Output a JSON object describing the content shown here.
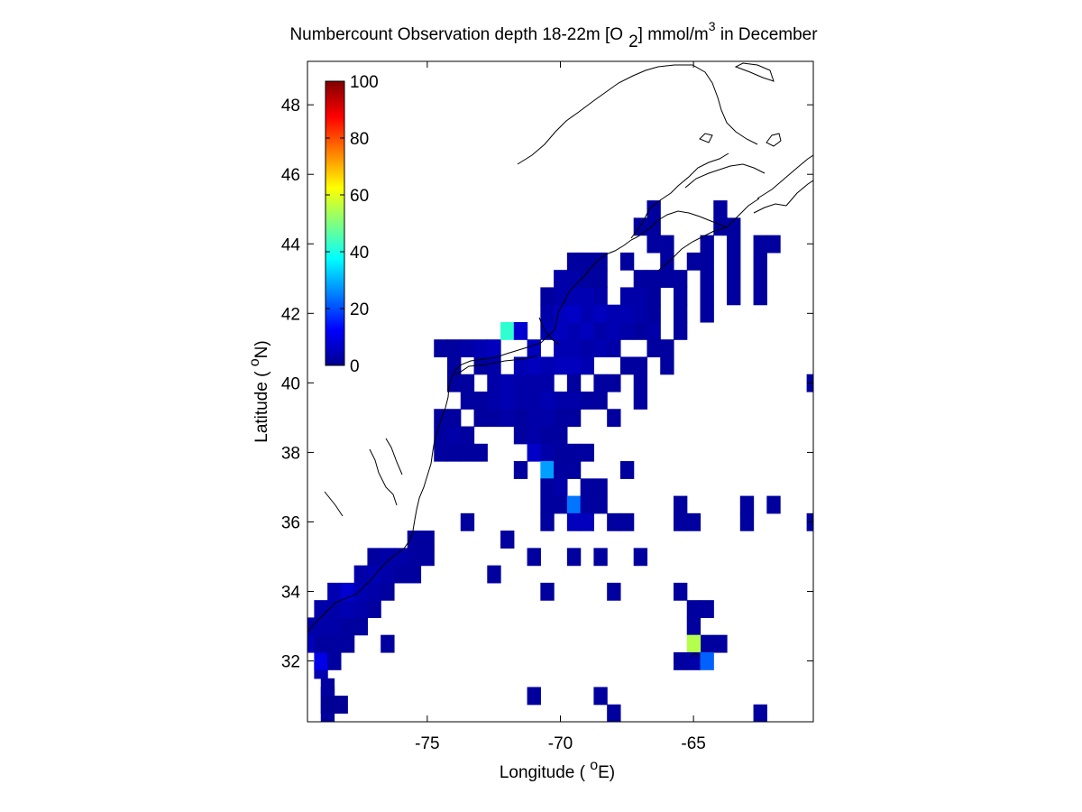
{
  "chart_data": {
    "type": "heatmap",
    "title_main": "Numbercount Observation depth 18-22m [O",
    "title_sub": "2",
    "title_mid": "] mmol/m",
    "title_sup": "3",
    "title_end": " in December",
    "xlabel_pre": "Longitude ( ",
    "xlabel_deg": "o",
    "xlabel_post": "E)",
    "ylabel_pre": "Latitude ( ",
    "ylabel_deg": "o",
    "ylabel_post": "N)",
    "xlim": [
      -79.5,
      -60.5
    ],
    "ylim": [
      30.25,
      49.25
    ],
    "xticks": [
      -75,
      -70,
      -65
    ],
    "xtick_labels": [
      "-75",
      "-70",
      "-65"
    ],
    "yticks": [
      32,
      34,
      36,
      38,
      40,
      42,
      44,
      46,
      48
    ],
    "ytick_labels": [
      "32",
      "34",
      "36",
      "38",
      "40",
      "42",
      "44",
      "46",
      "48"
    ],
    "colorbar": {
      "colormap": "jet",
      "range": [
        0,
        100
      ],
      "ticks": [
        0,
        20,
        40,
        60,
        80,
        100
      ],
      "tick_labels": [
        "0",
        "20",
        "40",
        "60",
        "80",
        "100"
      ],
      "placement": "top-left inside"
    },
    "cell_size_deg": [
      0.5,
      0.5
    ],
    "cells": [
      [
        -78.75,
        30.5,
        3
      ],
      [
        -78.75,
        30.75,
        2
      ],
      [
        -78.25,
        30.75,
        2
      ],
      [
        -78.75,
        31.0,
        2
      ],
      [
        -78.75,
        31.25,
        3
      ],
      [
        -79.0,
        31.75,
        5
      ],
      [
        -79.0,
        32.0,
        10
      ],
      [
        -78.5,
        32.0,
        3
      ],
      [
        -79.5,
        32.5,
        6
      ],
      [
        -79.0,
        32.5,
        3
      ],
      [
        -78.5,
        32.5,
        3
      ],
      [
        -78.0,
        32.5,
        3
      ],
      [
        -79.5,
        33.0,
        4
      ],
      [
        -79.0,
        33.0,
        4
      ],
      [
        -78.5,
        33.0,
        4
      ],
      [
        -78.0,
        33.0,
        3
      ],
      [
        -77.5,
        33.0,
        3
      ],
      [
        -79.0,
        33.5,
        4
      ],
      [
        -78.5,
        33.5,
        4
      ],
      [
        -78.0,
        33.5,
        5
      ],
      [
        -77.5,
        33.5,
        4
      ],
      [
        -77.0,
        33.5,
        3
      ],
      [
        -78.5,
        34.0,
        5
      ],
      [
        -78.0,
        34.0,
        8
      ],
      [
        -77.5,
        34.0,
        5
      ],
      [
        -77.0,
        34.0,
        4
      ],
      [
        -76.5,
        34.0,
        3
      ],
      [
        -77.5,
        34.5,
        4
      ],
      [
        -77.0,
        34.5,
        5
      ],
      [
        -76.5,
        34.5,
        4
      ],
      [
        -76.0,
        34.5,
        3
      ],
      [
        -75.5,
        34.5,
        3
      ],
      [
        -77.0,
        35.0,
        3
      ],
      [
        -76.5,
        35.0,
        4
      ],
      [
        -76.0,
        35.0,
        4
      ],
      [
        -75.5,
        35.0,
        3
      ],
      [
        -75.0,
        35.0,
        3
      ],
      [
        -75.5,
        35.5,
        3
      ],
      [
        -75.0,
        35.5,
        3
      ],
      [
        -74.0,
        38.0,
        3
      ],
      [
        -73.5,
        38.0,
        3
      ],
      [
        -73.0,
        38.0,
        3
      ],
      [
        -74.5,
        38.0,
        3
      ],
      [
        -74.5,
        38.5,
        3
      ],
      [
        -74.0,
        38.5,
        4
      ],
      [
        -73.5,
        38.5,
        3
      ],
      [
        -74.5,
        39.0,
        3
      ],
      [
        -74.0,
        39.0,
        3
      ],
      [
        -73.0,
        39.0,
        3
      ],
      [
        -72.5,
        39.0,
        3
      ],
      [
        -72.0,
        39.0,
        4
      ],
      [
        -73.5,
        39.5,
        3
      ],
      [
        -73.0,
        39.5,
        3
      ],
      [
        -72.5,
        39.5,
        4
      ],
      [
        -72.0,
        39.5,
        5
      ],
      [
        -71.5,
        39.5,
        4
      ],
      [
        -74.0,
        40.0,
        3
      ],
      [
        -73.5,
        40.0,
        3
      ],
      [
        -72.5,
        40.0,
        4
      ],
      [
        -72.0,
        40.0,
        5
      ],
      [
        -71.5,
        40.0,
        4
      ],
      [
        -74.0,
        40.5,
        3
      ],
      [
        -73.0,
        40.5,
        3
      ],
      [
        -72.5,
        40.5,
        4
      ],
      [
        -71.5,
        40.5,
        5
      ],
      [
        -71.0,
        40.5,
        6
      ],
      [
        -74.5,
        41.0,
        3
      ],
      [
        -74.0,
        41.0,
        3
      ],
      [
        -73.5,
        41.0,
        4
      ],
      [
        -73.0,
        41.0,
        5
      ],
      [
        -72.5,
        41.0,
        6
      ],
      [
        -72.0,
        41.5,
        42
      ],
      [
        -71.5,
        41.5,
        8
      ],
      [
        -71.0,
        41.0,
        6
      ],
      [
        -70.5,
        41.5,
        5
      ],
      [
        -70.0,
        41.5,
        6
      ],
      [
        -69.5,
        41.5,
        5
      ],
      [
        -69.0,
        41.5,
        6
      ],
      [
        -68.5,
        41.5,
        4
      ],
      [
        -70.5,
        42.0,
        4
      ],
      [
        -70.0,
        42.0,
        6
      ],
      [
        -69.5,
        42.0,
        7
      ],
      [
        -69.0,
        42.0,
        5
      ],
      [
        -68.5,
        42.0,
        6
      ],
      [
        -70.5,
        42.5,
        3
      ],
      [
        -70.0,
        42.5,
        4
      ],
      [
        -69.5,
        42.5,
        5
      ],
      [
        -69.0,
        42.5,
        5
      ],
      [
        -68.5,
        42.5,
        4
      ],
      [
        -70.0,
        43.0,
        4
      ],
      [
        -69.5,
        43.0,
        4
      ],
      [
        -69.0,
        43.0,
        3
      ],
      [
        -68.5,
        43.0,
        3
      ],
      [
        -69.5,
        43.5,
        3
      ],
      [
        -69.0,
        43.5,
        3
      ],
      [
        -68.5,
        43.5,
        3
      ],
      [
        -70.0,
        40.5,
        6
      ],
      [
        -69.5,
        40.5,
        6
      ],
      [
        -69.0,
        40.5,
        5
      ],
      [
        -70.5,
        40.5,
        5
      ],
      [
        -70.0,
        41.0,
        5
      ],
      [
        -69.5,
        41.0,
        5
      ],
      [
        -69.0,
        41.0,
        4
      ],
      [
        -68.5,
        41.0,
        5
      ],
      [
        -68.0,
        41.0,
        4
      ],
      [
        -68.0,
        41.5,
        5
      ],
      [
        -67.5,
        41.5,
        4
      ],
      [
        -67.0,
        41.5,
        3
      ],
      [
        -68.0,
        42.0,
        5
      ],
      [
        -67.5,
        42.0,
        5
      ],
      [
        -67.0,
        42.0,
        4
      ],
      [
        -66.5,
        42.0,
        3
      ],
      [
        -67.5,
        42.5,
        4
      ],
      [
        -67.0,
        42.5,
        4
      ],
      [
        -66.5,
        42.5,
        3
      ],
      [
        -67.0,
        43.0,
        3
      ],
      [
        -66.5,
        43.0,
        3
      ],
      [
        -66.0,
        43.0,
        3
      ],
      [
        -65.5,
        43.0,
        3
      ],
      [
        -67.5,
        43.5,
        3
      ],
      [
        -66.0,
        43.5,
        3
      ],
      [
        -65.0,
        43.5,
        3
      ],
      [
        -66.5,
        44.0,
        3
      ],
      [
        -66.0,
        44.0,
        3
      ],
      [
        -64.5,
        44.0,
        3
      ],
      [
        -63.5,
        44.0,
        3
      ],
      [
        -62.5,
        44.0,
        3
      ],
      [
        -62.0,
        44.0,
        3
      ],
      [
        -67.0,
        44.5,
        3
      ],
      [
        -66.5,
        44.5,
        3
      ],
      [
        -64.0,
        44.5,
        3
      ],
      [
        -63.5,
        44.5,
        3
      ],
      [
        -66.5,
        45.0,
        3
      ],
      [
        -64.0,
        45.0,
        3
      ],
      [
        -64.5,
        43.0,
        3
      ],
      [
        -64.5,
        42.5,
        3
      ],
      [
        -64.5,
        42.0,
        3
      ],
      [
        -63.5,
        43.0,
        3
      ],
      [
        -63.5,
        42.5,
        3
      ],
      [
        -62.5,
        43.0,
        3
      ],
      [
        -62.5,
        42.5,
        3
      ],
      [
        -62.5,
        43.5,
        3
      ],
      [
        -63.5,
        43.5,
        3
      ],
      [
        -64.5,
        43.5,
        3
      ],
      [
        -65.5,
        42.5,
        3
      ],
      [
        -65.5,
        42.0,
        3
      ],
      [
        -65.5,
        41.5,
        3
      ],
      [
        -66.0,
        41.0,
        3
      ],
      [
        -66.0,
        40.5,
        3
      ],
      [
        -66.5,
        41.5,
        4
      ],
      [
        -66.5,
        41.0,
        3
      ],
      [
        -67.0,
        40.5,
        3
      ],
      [
        -67.5,
        40.5,
        3
      ],
      [
        -68.0,
        40.0,
        3
      ],
      [
        -68.5,
        40.0,
        3
      ],
      [
        -69.5,
        40.0,
        3
      ],
      [
        -70.5,
        40.0,
        4
      ],
      [
        -71.0,
        40.0,
        4
      ],
      [
        -67.0,
        40.0,
        3
      ],
      [
        -67.0,
        39.5,
        3
      ],
      [
        -68.5,
        39.5,
        3
      ],
      [
        -69.0,
        39.5,
        3
      ],
      [
        -69.5,
        39.5,
        4
      ],
      [
        -70.0,
        39.5,
        4
      ],
      [
        -70.5,
        39.5,
        5
      ],
      [
        -71.0,
        39.5,
        4
      ],
      [
        -70.0,
        39.0,
        3
      ],
      [
        -70.5,
        39.0,
        4
      ],
      [
        -71.0,
        39.0,
        4
      ],
      [
        -71.5,
        39.0,
        3
      ],
      [
        -69.5,
        39.0,
        3
      ],
      [
        -68.0,
        39.0,
        3
      ],
      [
        -70.0,
        38.5,
        3
      ],
      [
        -70.5,
        38.5,
        3
      ],
      [
        -71.0,
        38.5,
        4
      ],
      [
        -71.5,
        38.5,
        3
      ],
      [
        -69.0,
        38.0,
        3
      ],
      [
        -69.5,
        38.0,
        3
      ],
      [
        -70.0,
        38.0,
        3
      ],
      [
        -70.5,
        38.0,
        4
      ],
      [
        -71.0,
        38.0,
        7
      ],
      [
        -71.5,
        37.5,
        3
      ],
      [
        -70.5,
        37.5,
        28
      ],
      [
        -70.0,
        37.5,
        3
      ],
      [
        -69.5,
        37.5,
        3
      ],
      [
        -67.5,
        37.5,
        3
      ],
      [
        -70.5,
        37.0,
        3
      ],
      [
        -70.0,
        37.0,
        4
      ],
      [
        -69.0,
        37.0,
        3
      ],
      [
        -68.5,
        37.0,
        3
      ],
      [
        -70.5,
        36.5,
        3
      ],
      [
        -70.0,
        36.5,
        3
      ],
      [
        -69.5,
        36.5,
        24
      ],
      [
        -69.0,
        36.5,
        3
      ],
      [
        -68.5,
        36.5,
        3
      ],
      [
        -69.5,
        36.0,
        6
      ],
      [
        -69.0,
        36.0,
        6
      ],
      [
        -68.0,
        36.0,
        3
      ],
      [
        -67.5,
        36.0,
        3
      ],
      [
        -70.5,
        36.0,
        3
      ],
      [
        -73.5,
        36.0,
        3
      ],
      [
        -72.0,
        35.5,
        3
      ],
      [
        -71.0,
        35.0,
        3
      ],
      [
        -69.5,
        35.0,
        3
      ],
      [
        -68.5,
        35.0,
        3
      ],
      [
        -67.0,
        35.0,
        3
      ],
      [
        -72.5,
        34.5,
        3
      ],
      [
        -70.5,
        34.0,
        3
      ],
      [
        -68.0,
        34.0,
        3
      ],
      [
        -65.5,
        34.0,
        3
      ],
      [
        -65.0,
        33.5,
        3
      ],
      [
        -64.5,
        33.5,
        3
      ],
      [
        -65.0,
        33.0,
        3
      ],
      [
        -76.5,
        32.5,
        3
      ],
      [
        -64.5,
        32.5,
        3
      ],
      [
        -64.0,
        32.5,
        3
      ],
      [
        -65.0,
        32.5,
        55
      ],
      [
        -65.0,
        32.0,
        4
      ],
      [
        -64.5,
        32.0,
        22
      ],
      [
        -65.5,
        32.0,
        3
      ],
      [
        -71.0,
        31.0,
        3
      ],
      [
        -68.5,
        31.0,
        3
      ],
      [
        -68.0,
        30.5,
        3
      ],
      [
        -62.5,
        30.5,
        3
      ],
      [
        -65.0,
        36.0,
        3
      ],
      [
        -65.5,
        36.0,
        3
      ],
      [
        -65.5,
        36.5,
        3
      ],
      [
        -63.0,
        36.0,
        3
      ],
      [
        -63.0,
        36.5,
        3
      ],
      [
        -62.0,
        36.5,
        3
      ],
      [
        -60.5,
        36.0,
        3
      ],
      [
        -60.5,
        40.0,
        3
      ]
    ]
  }
}
